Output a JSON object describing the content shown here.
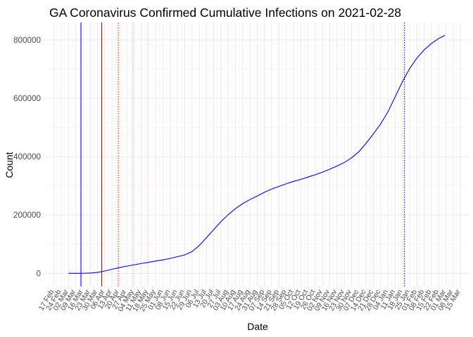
{
  "chart_data": {
    "type": "line",
    "title": "GA Coronavirus Confirmed Cumulative Infections on 2021-02-28",
    "xlabel": "Date",
    "ylabel": "Count",
    "x_range": [
      "2020-02-17",
      "2021-03-15"
    ],
    "ylim": [
      -45000,
      860000
    ],
    "yticks": [
      0,
      200000,
      400000,
      600000,
      800000
    ],
    "ytick_labels": [
      "0",
      "200000",
      "400000",
      "600000",
      "800000"
    ],
    "xtick_labels": [
      "17 Feb",
      "24 Feb",
      "02 Mar",
      "09 Mar",
      "16 Mar",
      "23 Mar",
      "30 Mar",
      "06 Apr",
      "13 Apr",
      "20 Apr",
      "27 Apr",
      "04 May",
      "11 May",
      "18 May",
      "25 May",
      "01 Jun",
      "08 Jun",
      "15 Jun",
      "22 Jun",
      "29 Jun",
      "06 Jul",
      "13 Jul",
      "20 Jul",
      "27 Jul",
      "03 Aug",
      "10 Aug",
      "17 Aug",
      "24 Aug",
      "31 Aug",
      "07 Sep",
      "14 Sep",
      "21 Sep",
      "28 Sep",
      "05 Oct",
      "12 Oct",
      "19 Oct",
      "26 Oct",
      "02 Nov",
      "09 Nov",
      "16 Nov",
      "23 Nov",
      "30 Nov",
      "07 Dec",
      "14 Dec",
      "21 Dec",
      "28 Dec",
      "04 Jan",
      "11 Jan",
      "18 Jan",
      "25 Jan",
      "01 Feb",
      "08 Feb",
      "15 Feb",
      "22 Feb",
      "01 Mar",
      "08 Mar",
      "15 Mar"
    ],
    "grid": true,
    "series": [
      {
        "color": "#0000ff",
        "points": [
          [
            "2020-03-02",
            0
          ],
          [
            "2020-03-09",
            0
          ],
          [
            "2020-03-16",
            150
          ],
          [
            "2020-03-23",
            800
          ],
          [
            "2020-03-30",
            3000
          ],
          [
            "2020-04-06",
            8000
          ],
          [
            "2020-04-13",
            14000
          ],
          [
            "2020-04-20",
            19500
          ],
          [
            "2020-04-27",
            24500
          ],
          [
            "2020-05-04",
            29000
          ],
          [
            "2020-05-11",
            33500
          ],
          [
            "2020-05-18",
            37500
          ],
          [
            "2020-05-25",
            42000
          ],
          [
            "2020-06-01",
            46000
          ],
          [
            "2020-06-08",
            51000
          ],
          [
            "2020-06-15",
            57000
          ],
          [
            "2020-06-22",
            63000
          ],
          [
            "2020-06-29",
            74000
          ],
          [
            "2020-07-06",
            95000
          ],
          [
            "2020-07-13",
            122000
          ],
          [
            "2020-07-20",
            150000
          ],
          [
            "2020-07-27",
            177000
          ],
          [
            "2020-08-03",
            201000
          ],
          [
            "2020-08-10",
            222000
          ],
          [
            "2020-08-17",
            239000
          ],
          [
            "2020-08-24",
            253000
          ],
          [
            "2020-08-31",
            265000
          ],
          [
            "2020-09-07",
            278000
          ],
          [
            "2020-09-14",
            289000
          ],
          [
            "2020-09-21",
            298000
          ],
          [
            "2020-09-28",
            307000
          ],
          [
            "2020-10-05",
            315000
          ],
          [
            "2020-10-12",
            322000
          ],
          [
            "2020-10-19",
            330000
          ],
          [
            "2020-10-26",
            338000
          ],
          [
            "2020-11-02",
            347000
          ],
          [
            "2020-11-09",
            357000
          ],
          [
            "2020-11-16",
            368000
          ],
          [
            "2020-11-23",
            380000
          ],
          [
            "2020-11-30",
            396000
          ],
          [
            "2020-12-07",
            417000
          ],
          [
            "2020-12-14",
            446000
          ],
          [
            "2020-12-21",
            478000
          ],
          [
            "2020-12-28",
            512000
          ],
          [
            "2021-01-04",
            553000
          ],
          [
            "2021-01-11",
            605000
          ],
          [
            "2021-01-18",
            657000
          ],
          [
            "2021-01-25",
            702000
          ],
          [
            "2021-02-01",
            738000
          ],
          [
            "2021-02-08",
            766000
          ],
          [
            "2021-02-15",
            788000
          ],
          [
            "2021-02-22",
            805000
          ],
          [
            "2021-02-28",
            816000
          ]
        ]
      }
    ],
    "vlines": [
      {
        "date": "2020-03-14",
        "color": "#0000ff",
        "style": "solid"
      },
      {
        "date": "2020-04-03",
        "color": "#cc0000",
        "style": "solid"
      },
      {
        "date": "2020-04-19",
        "color": "#dd2222",
        "style": "dotted"
      },
      {
        "date": "2020-05-03",
        "color": "#ffaaaa",
        "style": "dotted"
      },
      {
        "date": "2020-05-17",
        "color": "#ffcccc",
        "style": "dotted"
      },
      {
        "date": "2021-01-20",
        "color": "#0000ff",
        "style": "dotted"
      }
    ]
  }
}
